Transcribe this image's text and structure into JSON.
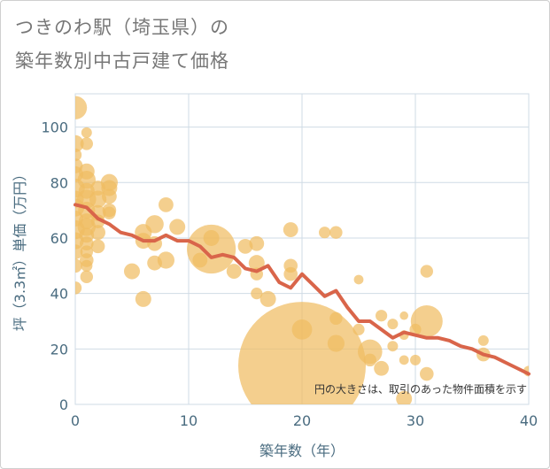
{
  "title_line1": "つきのわ駅（埼玉県）の",
  "title_line2": "築年数別中古戸建て価格",
  "chart_data": {
    "type": "scatter",
    "title": "つきのわ駅（埼玉県）の築年数別中古戸建て価格",
    "xlabel": "築年数（年）",
    "ylabel": "坪（3.3㎡）単価（万円）",
    "xlim": [
      0,
      40
    ],
    "ylim": [
      0,
      112
    ],
    "x_ticks": [
      0,
      10,
      20,
      30,
      40
    ],
    "y_ticks": [
      0,
      20,
      40,
      60,
      80,
      100
    ],
    "grid": true,
    "annotation": "円の大きさは、取引のあった物件面積を示す",
    "colors": {
      "bubble": "#f0bc62",
      "trend": "#d9654a",
      "grid": "#cfdbe5",
      "text": "#4a6c80"
    },
    "bubbles": [
      {
        "x": 0,
        "y": 107,
        "s": 2.2
      },
      {
        "x": 0,
        "y": 94,
        "s": 1.6
      },
      {
        "x": 0,
        "y": 90,
        "s": 1.2
      },
      {
        "x": 0,
        "y": 86,
        "s": 1.4
      },
      {
        "x": 0,
        "y": 83,
        "s": 1.5
      },
      {
        "x": 0,
        "y": 78,
        "s": 1.8
      },
      {
        "x": 0,
        "y": 74,
        "s": 1.6
      },
      {
        "x": 0,
        "y": 71,
        "s": 1.7
      },
      {
        "x": 0,
        "y": 67,
        "s": 1.5
      },
      {
        "x": 0,
        "y": 63,
        "s": 1.8
      },
      {
        "x": 0,
        "y": 59,
        "s": 1.6
      },
      {
        "x": 0,
        "y": 55,
        "s": 1.4
      },
      {
        "x": 0,
        "y": 50,
        "s": 1.3
      },
      {
        "x": 0,
        "y": 42,
        "s": 1.2
      },
      {
        "x": 1,
        "y": 98,
        "s": 1.0
      },
      {
        "x": 1,
        "y": 94,
        "s": 1.2
      },
      {
        "x": 1,
        "y": 84,
        "s": 1.5
      },
      {
        "x": 1,
        "y": 81,
        "s": 1.7
      },
      {
        "x": 1,
        "y": 77,
        "s": 1.5
      },
      {
        "x": 1,
        "y": 74,
        "s": 1.8
      },
      {
        "x": 1,
        "y": 70,
        "s": 1.6
      },
      {
        "x": 1,
        "y": 66,
        "s": 1.5
      },
      {
        "x": 1,
        "y": 64,
        "s": 1.7
      },
      {
        "x": 1,
        "y": 61,
        "s": 1.4
      },
      {
        "x": 1,
        "y": 58,
        "s": 1.3
      },
      {
        "x": 1,
        "y": 55,
        "s": 1.2
      },
      {
        "x": 1,
        "y": 52,
        "s": 1.3
      },
      {
        "x": 1,
        "y": 50,
        "s": 1.1
      },
      {
        "x": 1,
        "y": 46,
        "s": 1.2
      },
      {
        "x": 2,
        "y": 78,
        "s": 1.4
      },
      {
        "x": 2,
        "y": 74,
        "s": 1.6
      },
      {
        "x": 2,
        "y": 69,
        "s": 1.5
      },
      {
        "x": 2,
        "y": 66,
        "s": 1.3
      },
      {
        "x": 2,
        "y": 62,
        "s": 1.4
      },
      {
        "x": 2,
        "y": 57,
        "s": 1.3
      },
      {
        "x": 3,
        "y": 80,
        "s": 1.6
      },
      {
        "x": 3,
        "y": 78,
        "s": 1.5
      },
      {
        "x": 3,
        "y": 75,
        "s": 1.4
      },
      {
        "x": 3,
        "y": 70,
        "s": 1.3
      },
      {
        "x": 3,
        "y": 69,
        "s": 1.2
      },
      {
        "x": 5,
        "y": 48,
        "s": 1.5
      },
      {
        "x": 6,
        "y": 62,
        "s": 1.6
      },
      {
        "x": 6,
        "y": 59,
        "s": 1.5
      },
      {
        "x": 6,
        "y": 38,
        "s": 1.5
      },
      {
        "x": 7,
        "y": 65,
        "s": 1.7
      },
      {
        "x": 7,
        "y": 58,
        "s": 1.4
      },
      {
        "x": 7,
        "y": 51,
        "s": 1.4
      },
      {
        "x": 8,
        "y": 72,
        "s": 1.4
      },
      {
        "x": 8,
        "y": 52,
        "s": 1.6
      },
      {
        "x": 9,
        "y": 64,
        "s": 1.5
      },
      {
        "x": 11,
        "y": 52,
        "s": 1.4
      },
      {
        "x": 12,
        "y": 56,
        "s": 4.6
      },
      {
        "x": 12,
        "y": 60,
        "s": 1.5
      },
      {
        "x": 14,
        "y": 48,
        "s": 1.4
      },
      {
        "x": 15,
        "y": 57,
        "s": 1.4
      },
      {
        "x": 16,
        "y": 58,
        "s": 1.4
      },
      {
        "x": 16,
        "y": 51,
        "s": 1.5
      },
      {
        "x": 16,
        "y": 47,
        "s": 1.2
      },
      {
        "x": 16,
        "y": 40,
        "s": 1.1
      },
      {
        "x": 17,
        "y": 38,
        "s": 1.5
      },
      {
        "x": 19,
        "y": 63,
        "s": 1.4
      },
      {
        "x": 19,
        "y": 50,
        "s": 1.3
      },
      {
        "x": 19,
        "y": 47,
        "s": 1.3
      },
      {
        "x": 20,
        "y": 14,
        "s": 12.0
      },
      {
        "x": 20,
        "y": 27,
        "s": 1.9
      },
      {
        "x": 22,
        "y": 62,
        "s": 1.1
      },
      {
        "x": 23,
        "y": 62,
        "s": 1.2
      },
      {
        "x": 23,
        "y": 31,
        "s": 1.2
      },
      {
        "x": 23,
        "y": 22,
        "s": 1.6
      },
      {
        "x": 25,
        "y": 45,
        "s": 0.9
      },
      {
        "x": 25,
        "y": 27,
        "s": 1.1
      },
      {
        "x": 26,
        "y": 19,
        "s": 2.3
      },
      {
        "x": 26,
        "y": 16,
        "s": 1.2
      },
      {
        "x": 27,
        "y": 32,
        "s": 1.1
      },
      {
        "x": 27,
        "y": 13,
        "s": 1.4
      },
      {
        "x": 28,
        "y": 29,
        "s": 1.0
      },
      {
        "x": 28,
        "y": 21,
        "s": 1.0
      },
      {
        "x": 29,
        "y": 32,
        "s": 0.8
      },
      {
        "x": 29,
        "y": 25,
        "s": 0.9
      },
      {
        "x": 29,
        "y": 16,
        "s": 0.9
      },
      {
        "x": 29,
        "y": 2,
        "s": 1.5
      },
      {
        "x": 30,
        "y": 27,
        "s": 1.1
      },
      {
        "x": 30,
        "y": 16,
        "s": 1.0
      },
      {
        "x": 31,
        "y": 30,
        "s": 3.0
      },
      {
        "x": 31,
        "y": 48,
        "s": 1.2
      },
      {
        "x": 31,
        "y": 11,
        "s": 1.3
      },
      {
        "x": 36,
        "y": 23,
        "s": 1.0
      },
      {
        "x": 36,
        "y": 18,
        "s": 1.3
      },
      {
        "x": 40,
        "y": 12,
        "s": 1.0
      }
    ],
    "trend": {
      "x": [
        0,
        1,
        2,
        3,
        4,
        5,
        6,
        7,
        8,
        9,
        10,
        11,
        12,
        13,
        14,
        15,
        16,
        17,
        18,
        19,
        20,
        21,
        22,
        23,
        24,
        25,
        26,
        27,
        28,
        29,
        30,
        31,
        32,
        33,
        34,
        35,
        36,
        37,
        38,
        39,
        40
      ],
      "y": [
        72,
        71,
        67,
        65,
        62,
        61,
        59,
        59,
        61,
        59,
        59,
        57,
        53,
        54,
        53,
        49,
        48,
        50,
        44,
        42,
        47,
        43,
        39,
        41,
        35,
        30,
        30,
        27,
        24,
        26,
        25,
        24,
        24,
        23,
        21,
        20,
        18,
        17,
        15,
        13,
        11
      ]
    }
  }
}
